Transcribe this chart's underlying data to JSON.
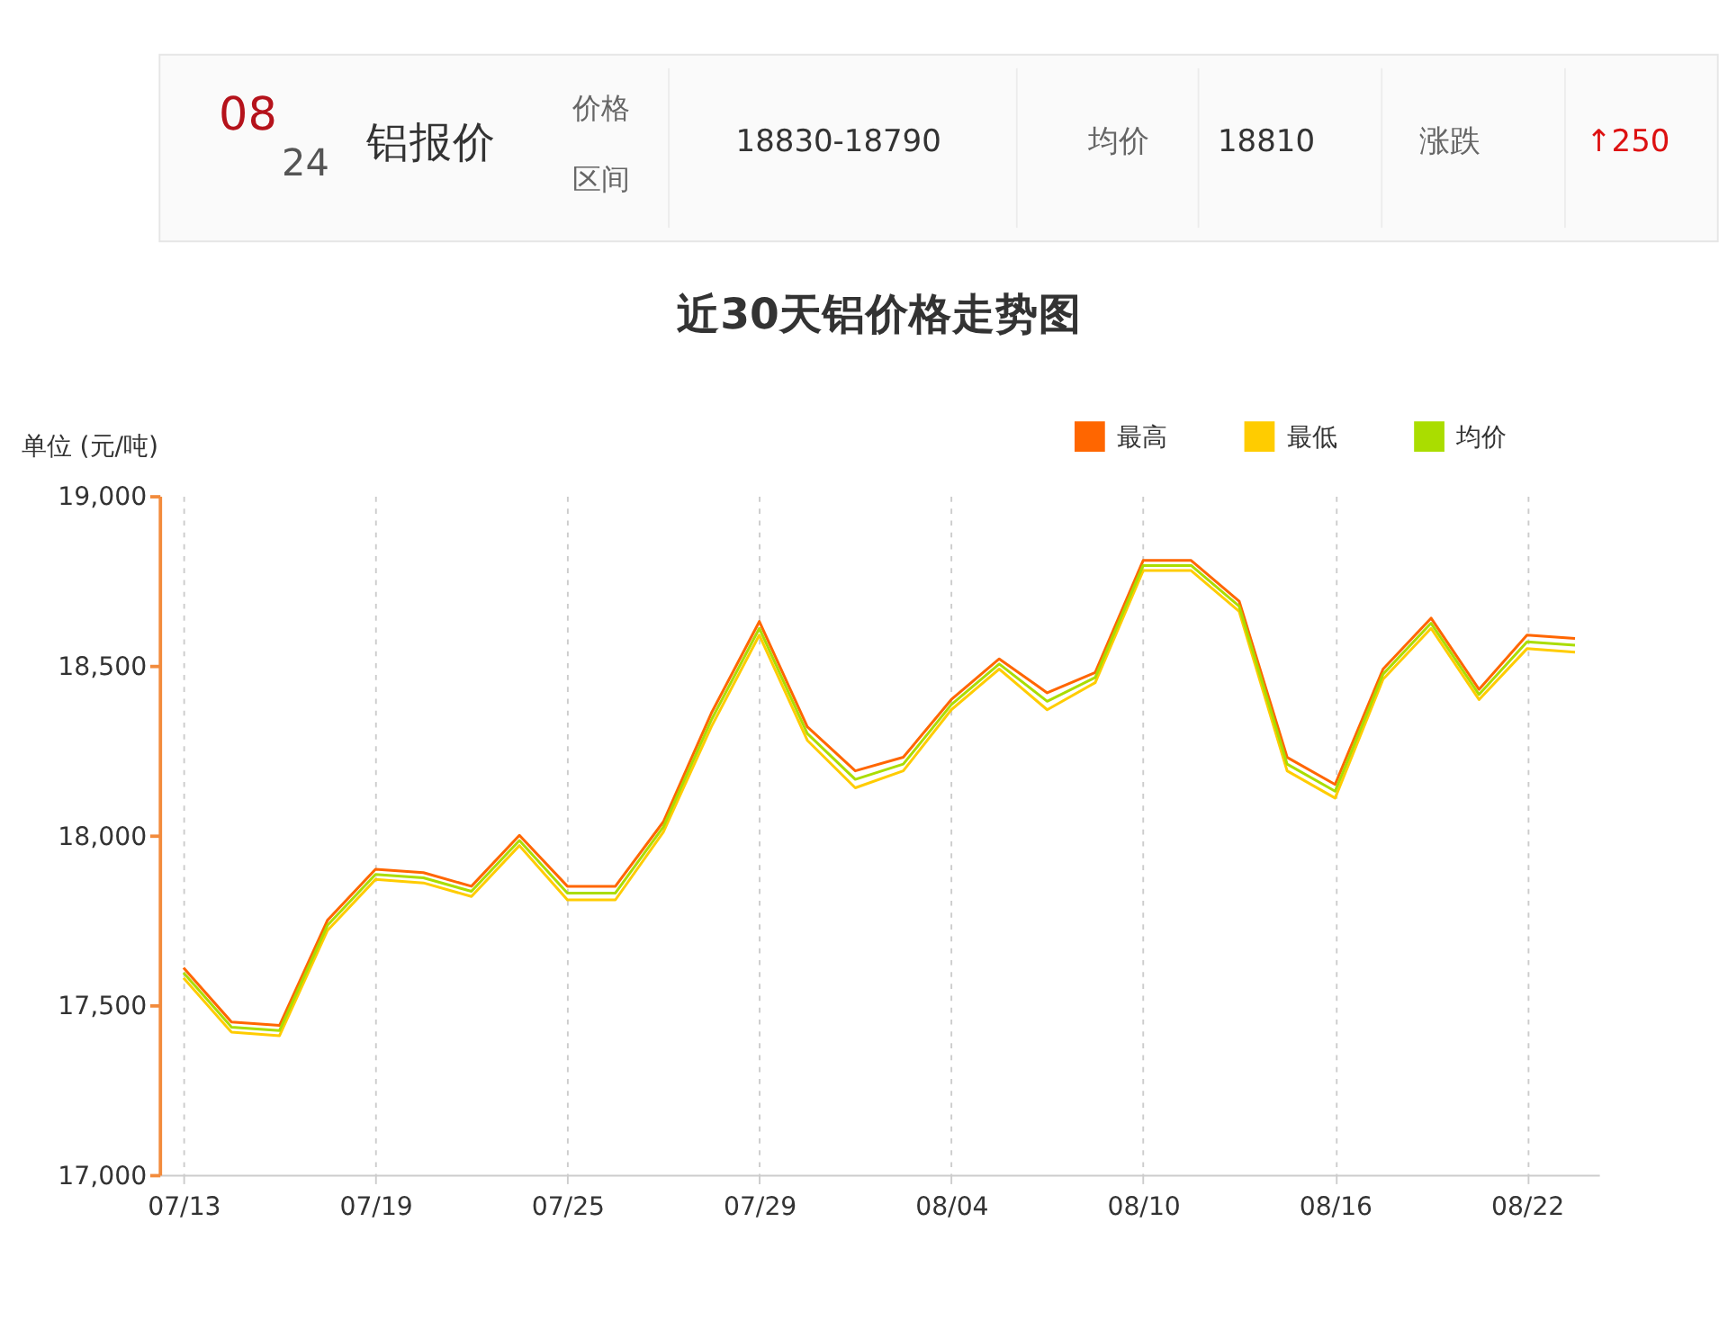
{
  "chart_data": [
    {
      "type": "other",
      "annotations": [
        "08",
        "24",
        "铝报价",
        "价格",
        "区间",
        "18830-18790",
        "均价",
        "18810",
        "涨跌",
        "↑250"
      ]
    },
    {
      "type": "line",
      "title": "近30天铝价格走势图",
      "ylabel": "单位 (元/吨)",
      "categories": [
        "07/13",
        null,
        null,
        null,
        "07/19",
        null,
        null,
        null,
        "07/25",
        null,
        null,
        null,
        "07/29",
        null,
        null,
        null,
        "08/04",
        null,
        null,
        null,
        "08/10",
        null,
        null,
        null,
        "08/16",
        null,
        null,
        null,
        "08/22",
        null
      ],
      "series": [
        {
          "name": "最高",
          "color": "#ff6600",
          "values": [
            17610,
            17450,
            17440,
            17750,
            17900,
            17890,
            17850,
            18000,
            17850,
            17850,
            18040,
            18360,
            18630,
            18320,
            18190,
            18230,
            18400,
            18520,
            18420,
            18480,
            18810,
            18810,
            18690,
            18230,
            18150,
            18490,
            18640,
            18430,
            18590,
            18580
          ]
        },
        {
          "name": "最低",
          "color": "#ffcc00",
          "values": [
            17580,
            17420,
            17410,
            17720,
            17870,
            17860,
            17820,
            17970,
            17810,
            17810,
            18010,
            18320,
            18590,
            18280,
            18140,
            18190,
            18370,
            18490,
            18370,
            18450,
            18780,
            18780,
            18660,
            18190,
            18110,
            18460,
            18610,
            18400,
            18550,
            18540
          ]
        },
        {
          "name": "均价",
          "color": "#aadd00",
          "values": [
            17595,
            17435,
            17425,
            17735,
            17885,
            17875,
            17835,
            17985,
            17830,
            17830,
            18025,
            18340,
            18610,
            18300,
            18165,
            18210,
            18385,
            18505,
            18395,
            18465,
            18795,
            18795,
            18675,
            18210,
            18130,
            18475,
            18625,
            18415,
            18570,
            18560
          ]
        }
      ],
      "ylim": [
        17000,
        19000
      ],
      "yticks": [
        {
          "value": 17000,
          "label": "17,000"
        },
        {
          "value": 17500,
          "label": "17,500"
        },
        {
          "value": 18000,
          "label": "18,000"
        },
        {
          "value": 18500,
          "label": "18,500"
        },
        {
          "value": 19000,
          "label": "19,000"
        }
      ],
      "grid": "x",
      "legend": "top right",
      "marker": "none",
      "line_style": "solid"
    }
  ]
}
